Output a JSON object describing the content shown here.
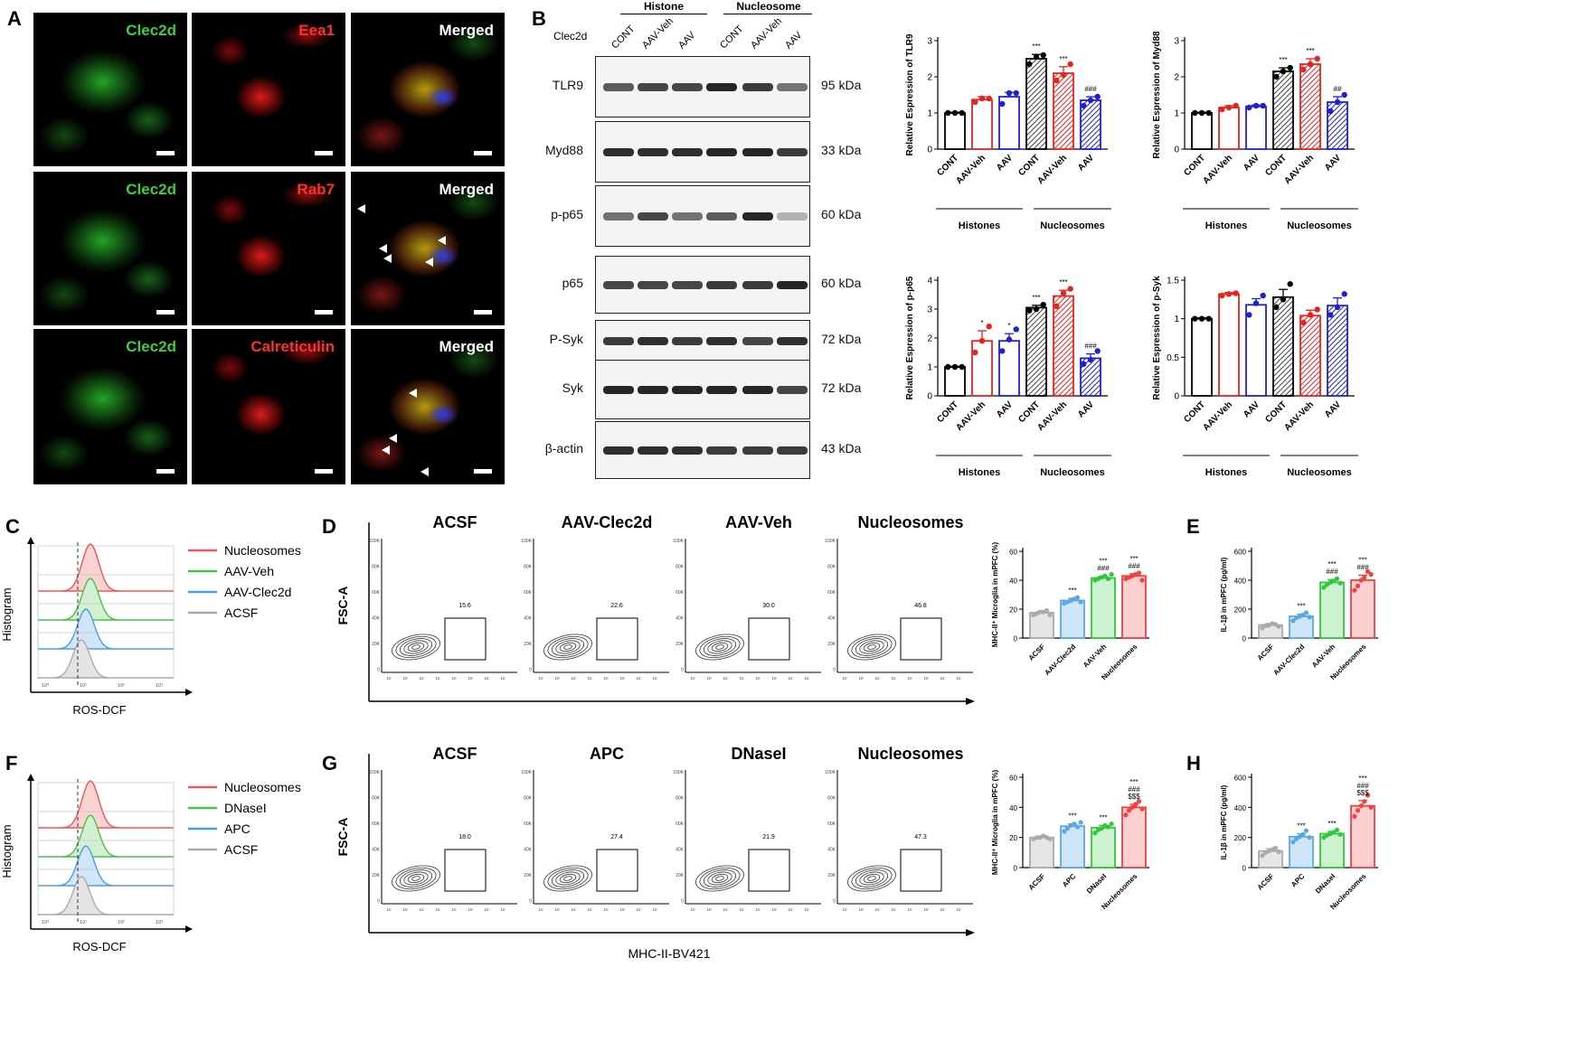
{
  "panels": {
    "A": "A",
    "B": "B",
    "C": "C",
    "D": "D",
    "E": "E",
    "F": "F",
    "G": "G",
    "H": "H"
  },
  "panelA": {
    "rows": [
      {
        "c1": "Clec2d",
        "c2": "Eea1",
        "c3": "Merged"
      },
      {
        "c1": "Clec2d",
        "c2": "Rab7",
        "c3": "Merged"
      },
      {
        "c1": "Clec2d",
        "c2": "Calreticulin",
        "c3": "Merged"
      }
    ],
    "colors": {
      "green": "#3ccf3c",
      "red": "#ff3030",
      "blue": "#3040ff"
    }
  },
  "panelB": {
    "header": {
      "group1": "Histone",
      "group2": "Nucleosome",
      "row_label": "Clec2d"
    },
    "lanes": [
      "CONT",
      "AAV-Veh",
      "AAV",
      "CONT",
      "AAV-Veh",
      "AAV"
    ],
    "blots": [
      {
        "name": "TLR9",
        "kda": "95 kDa"
      },
      {
        "name": "Myd88",
        "kda": "33 kDa"
      },
      {
        "name": "p-p65",
        "kda": "60 kDa"
      },
      {
        "name": "p65",
        "kda": "60 kDa"
      },
      {
        "name": "P-Syk",
        "kda": "72 kDa"
      },
      {
        "name": "Syk",
        "kda": "72 kDa"
      },
      {
        "name": "β-actin",
        "kda": "43 kDa"
      }
    ]
  },
  "panelC": {
    "legend": [
      "Nucleosomes",
      "AAV-Veh",
      "AAV-Clec2d",
      "ACSF"
    ],
    "ylabel": "Histogram",
    "xlabel": "ROS-DCF"
  },
  "panelF": {
    "legend": [
      "Nucleosomes",
      "DNaseI",
      "APC",
      "ACSF"
    ],
    "ylabel": "Histogram",
    "xlabel": "ROS-DCF"
  },
  "panelD": {
    "titles": [
      "ACSF",
      "AAV-Clec2d",
      "AAV-Veh",
      "Nucleosomes"
    ],
    "gates": [
      "15.6",
      "22.6",
      "30.0",
      "46.8"
    ],
    "ylabel": "FSC-A",
    "xlabel": "MHC-II-BV421"
  },
  "panelG": {
    "titles": [
      "ACSF",
      "APC",
      "DNaseI",
      "Nucleosomes"
    ],
    "gates": [
      "18.0",
      "27.4",
      "21.9",
      "47.3"
    ],
    "ylabel": "FSC-A",
    "xlabel": "MHC-II-BV421"
  },
  "chart_data": [
    {
      "id": "B-TLR9",
      "type": "bar",
      "ylabel": "Relative Espression of TLR9",
      "categories": [
        "CONT",
        "AAV-Veh",
        "AAV",
        "CONT",
        "AAV-Veh",
        "AAV"
      ],
      "groups": [
        "Histones",
        "Nucleosomes"
      ],
      "values": [
        1.0,
        1.37,
        1.45,
        2.5,
        2.1,
        1.35
      ],
      "errors": [
        0.02,
        0.08,
        0.12,
        0.12,
        0.18,
        0.1
      ],
      "points": [
        [
          1.0,
          1.0,
          1.0
        ],
        [
          1.3,
          1.4,
          1.4
        ],
        [
          1.25,
          1.55,
          1.55
        ],
        [
          2.35,
          2.55,
          2.6
        ],
        [
          1.9,
          2.05,
          2.35
        ],
        [
          1.2,
          1.35,
          1.45
        ]
      ],
      "stars": [
        "",
        "",
        "",
        "***",
        "***",
        "###"
      ],
      "ylim": [
        0,
        3
      ],
      "yticks": [
        0,
        1,
        2,
        3
      ],
      "colors": [
        "#000",
        "#e52420",
        "#2020d0",
        "#000",
        "#e52420",
        "#2020d0"
      ],
      "hatched": [
        false,
        false,
        false,
        true,
        true,
        true
      ]
    },
    {
      "id": "B-Myd88",
      "type": "bar",
      "ylabel": "Relative Espression of Myd88",
      "categories": [
        "CONT",
        "AAV-Veh",
        "AAV",
        "CONT",
        "AAV-Veh",
        "AAV"
      ],
      "groups": [
        "Histones",
        "Nucleosomes"
      ],
      "values": [
        1.0,
        1.15,
        1.18,
        2.15,
        2.35,
        1.3
      ],
      "errors": [
        0.02,
        0.05,
        0.04,
        0.1,
        0.15,
        0.15
      ],
      "points": [
        [
          1.0,
          1.0,
          1.0
        ],
        [
          1.1,
          1.15,
          1.2
        ],
        [
          1.15,
          1.2,
          1.2
        ],
        [
          2.0,
          2.15,
          2.25
        ],
        [
          2.2,
          2.35,
          2.5
        ],
        [
          1.05,
          1.3,
          1.5
        ]
      ],
      "stars": [
        "",
        "",
        "",
        "***",
        "***",
        "##"
      ],
      "ylim": [
        0,
        3
      ],
      "yticks": [
        0,
        1,
        2,
        3
      ],
      "colors": [
        "#000",
        "#e52420",
        "#2020d0",
        "#000",
        "#e52420",
        "#2020d0"
      ],
      "hatched": [
        false,
        false,
        false,
        true,
        true,
        true
      ]
    },
    {
      "id": "B-p-p65",
      "type": "bar",
      "ylabel": "Relative Espression of p-p65",
      "categories": [
        "CONT",
        "AAV-Veh",
        "AAV",
        "CONT",
        "AAV-Veh",
        "AAV"
      ],
      "groups": [
        "Histones",
        "Nucleosomes"
      ],
      "values": [
        1.0,
        1.9,
        1.9,
        3.05,
        3.45,
        1.3
      ],
      "errors": [
        0.02,
        0.35,
        0.25,
        0.08,
        0.2,
        0.15
      ],
      "points": [
        [
          1.0,
          1.0,
          1.0
        ],
        [
          1.5,
          1.9,
          2.4
        ],
        [
          1.55,
          1.95,
          2.3
        ],
        [
          2.95,
          3.0,
          3.15
        ],
        [
          3.1,
          3.55,
          3.7
        ],
        [
          1.1,
          1.25,
          1.55
        ]
      ],
      "stars": [
        "",
        "*",
        "*",
        "***",
        "***",
        "###"
      ],
      "ylim": [
        0,
        4
      ],
      "yticks": [
        0,
        1,
        2,
        3,
        4
      ],
      "colors": [
        "#000",
        "#e52420",
        "#2020d0",
        "#000",
        "#e52420",
        "#2020d0"
      ],
      "hatched": [
        false,
        false,
        false,
        true,
        true,
        true
      ]
    },
    {
      "id": "B-p-Syk",
      "type": "bar",
      "ylabel": "Relative Espression of p-Syk",
      "categories": [
        "CONT",
        "AAV-Veh",
        "AAV",
        "CONT",
        "AAV-Veh",
        "AAV"
      ],
      "groups": [
        "Histones",
        "Nucleosomes"
      ],
      "values": [
        1.0,
        1.32,
        1.18,
        1.28,
        1.04,
        1.17
      ],
      "errors": [
        0.01,
        0.02,
        0.08,
        0.1,
        0.07,
        0.1
      ],
      "points": [
        [
          1.0,
          1.0,
          1.0
        ],
        [
          1.3,
          1.32,
          1.33
        ],
        [
          1.05,
          1.2,
          1.3
        ],
        [
          1.15,
          1.25,
          1.45
        ],
        [
          0.95,
          1.05,
          1.12
        ],
        [
          1.05,
          1.15,
          1.32
        ]
      ],
      "stars": [
        "",
        "",
        "",
        "",
        "",
        ""
      ],
      "ylim": [
        0,
        1.5
      ],
      "yticks": [
        0.0,
        0.5,
        1.0,
        1.5
      ],
      "colors": [
        "#000",
        "#e52420",
        "#2020d0",
        "#000",
        "#e52420",
        "#2020d0"
      ],
      "hatched": [
        false,
        false,
        false,
        true,
        true,
        true
      ]
    },
    {
      "id": "D-bar",
      "type": "bar",
      "ylabel": "MHC-II⁺ Microglia in mPFC (%)",
      "categories": [
        "ACSF",
        "AAV-Clec2d",
        "AAV-Veh",
        "Nucleosomes"
      ],
      "values": [
        17.5,
        26,
        41.5,
        43
      ],
      "errors": [
        1,
        1.5,
        1.2,
        1.5
      ],
      "points": [
        [
          16,
          17,
          18,
          18,
          19,
          16
        ],
        [
          24,
          25,
          26,
          27,
          28,
          25
        ],
        [
          40,
          41,
          42,
          43,
          41,
          44
        ],
        [
          41,
          42,
          43,
          44,
          45,
          40
        ]
      ],
      "stars": [
        "",
        "***",
        "***\n###",
        "***\n###"
      ],
      "ylim": [
        0,
        60
      ],
      "yticks": [
        0,
        20,
        40,
        60
      ],
      "colors": [
        "#aaaaaa",
        "#5aa9e6",
        "#2ec83a",
        "#f04040"
      ]
    },
    {
      "id": "E-bar",
      "type": "bar",
      "ylabel": "IL-1β in mPFC (pg/ml)",
      "categories": [
        "ACSF",
        "AAV-Clec2d",
        "AAV-Veh",
        "Nucleosomes"
      ],
      "values": [
        90,
        150,
        385,
        400
      ],
      "errors": [
        10,
        15,
        20,
        35
      ],
      "points": [
        [
          70,
          85,
          90,
          100,
          95,
          80
        ],
        [
          120,
          140,
          150,
          160,
          175,
          145
        ],
        [
          350,
          370,
          385,
          395,
          410,
          380
        ],
        [
          330,
          360,
          400,
          420,
          460,
          440
        ]
      ],
      "stars": [
        "",
        "***",
        "***\n###",
        "***\n###"
      ],
      "ylim": [
        0,
        600
      ],
      "yticks": [
        0,
        200,
        400,
        600
      ],
      "colors": [
        "#aaaaaa",
        "#5aa9e6",
        "#2ec83a",
        "#f04040"
      ]
    },
    {
      "id": "G-bar",
      "type": "bar",
      "ylabel": "MHC-II⁺ Microglia in mPFC (%)",
      "categories": [
        "ACSF",
        "APC",
        "DNaseI",
        "Nucleosomes"
      ],
      "values": [
        20,
        27.5,
        26.5,
        40
      ],
      "errors": [
        0.8,
        1.5,
        1.5,
        2
      ],
      "points": [
        [
          19,
          20,
          20,
          21,
          20,
          19
        ],
        [
          24,
          26,
          28,
          29,
          27,
          30
        ],
        [
          23,
          25,
          26,
          28,
          27,
          29
        ],
        [
          35,
          38,
          40,
          42,
          44,
          39
        ]
      ],
      "stars": [
        "",
        "***",
        "***",
        "***\n###\n$$$"
      ],
      "ylim": [
        0,
        60
      ],
      "yticks": [
        0,
        20,
        40,
        60
      ],
      "colors": [
        "#aaaaaa",
        "#5aa9e6",
        "#2ec83a",
        "#f04040"
      ]
    },
    {
      "id": "H-bar",
      "type": "bar",
      "ylabel": "IL-1β in mPFC (pg/ml)",
      "categories": [
        "ACSF",
        "APC",
        "DNaseI",
        "Nucleosomes"
      ],
      "values": [
        110,
        205,
        225,
        410
      ],
      "errors": [
        15,
        20,
        15,
        35
      ],
      "points": [
        [
          80,
          100,
          110,
          120,
          130,
          105
        ],
        [
          170,
          190,
          205,
          220,
          245,
          200
        ],
        [
          200,
          215,
          225,
          235,
          250,
          220
        ],
        [
          340,
          380,
          410,
          440,
          480,
          400
        ]
      ],
      "stars": [
        "",
        "***",
        "***",
        "***\n###\n$$$"
      ],
      "ylim": [
        0,
        600
      ],
      "yticks": [
        0,
        200,
        400,
        600
      ],
      "colors": [
        "#aaaaaa",
        "#5aa9e6",
        "#2ec83a",
        "#f04040"
      ]
    }
  ]
}
